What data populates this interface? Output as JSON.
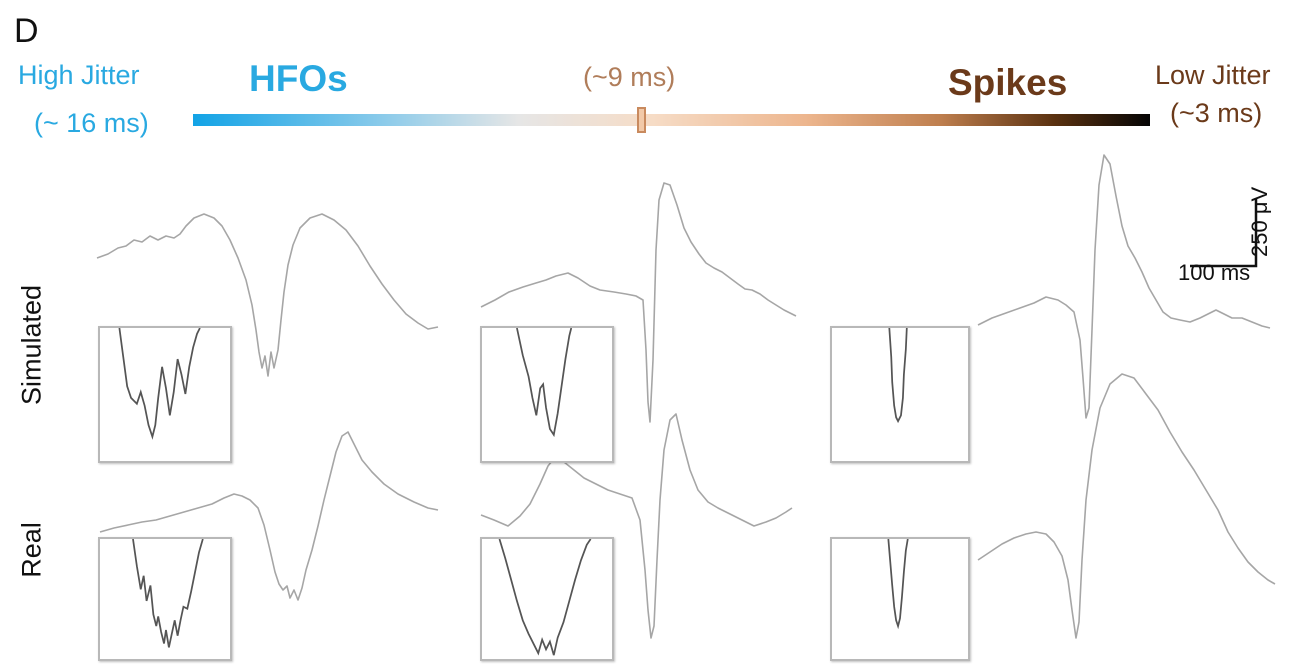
{
  "panel_label": "D",
  "jitter_scale": {
    "high_label": "High Jitter",
    "high_value": "(~ 16 ms)",
    "left_title": "HFOs",
    "middle_value": "(~9 ms)",
    "right_title": "Spikes",
    "low_label": "Low Jitter",
    "low_value": "(~3 ms)"
  },
  "rows": {
    "simulated": "Simulated",
    "real": "Real"
  },
  "scale_bar": {
    "vertical": "250 μV",
    "horizontal": "100 ms"
  },
  "colors": {
    "hfo": "#29a9e1",
    "mid": "#b07d5a",
    "spike": "#6b3a1a",
    "trace": "#a6a6a6",
    "inset_trace": "#555555"
  }
}
